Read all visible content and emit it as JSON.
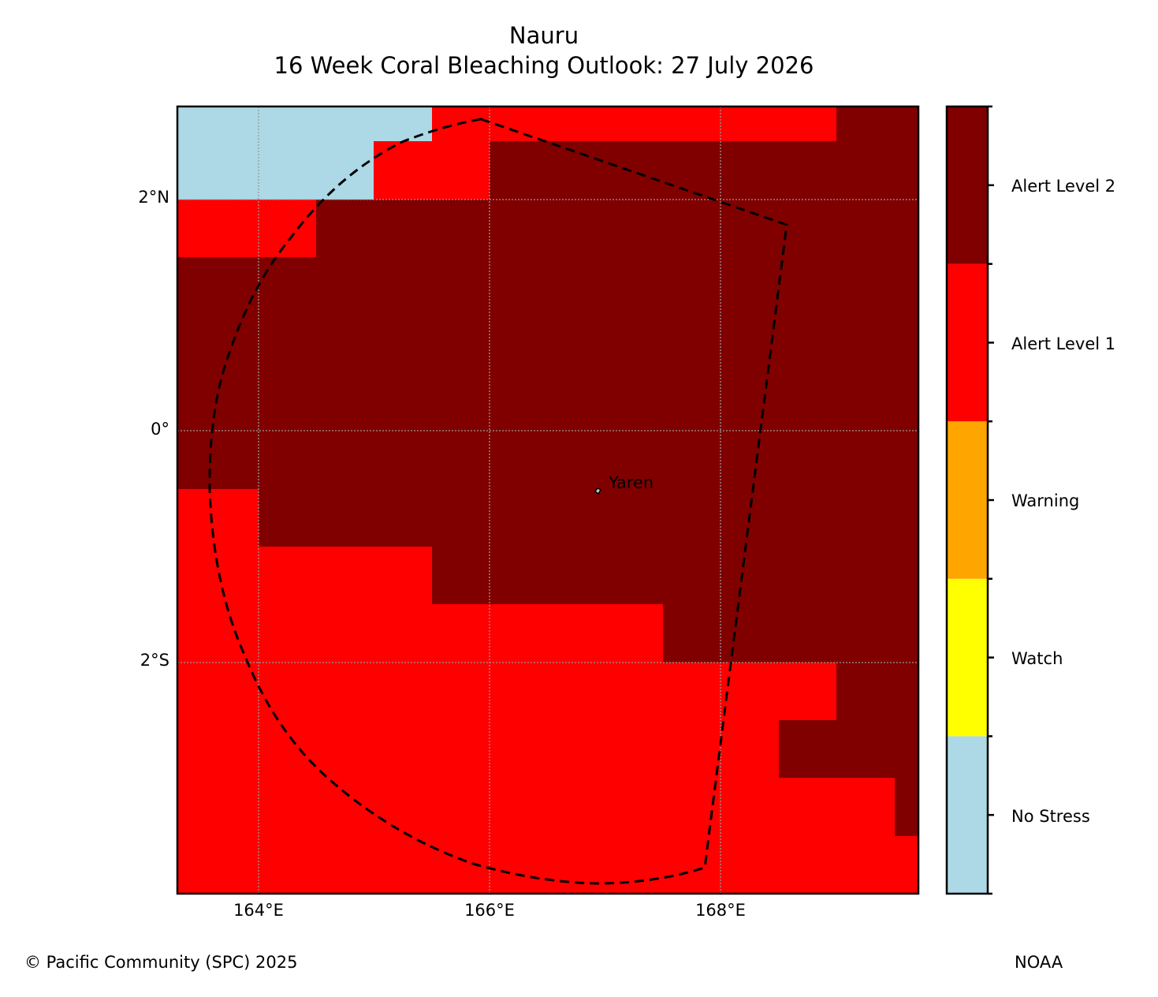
{
  "title": {
    "line1": "Nauru",
    "line2": "16 Week Coral Bleaching Outlook: 27 July 2026"
  },
  "map": {
    "lat_labels": [
      "2°N",
      "0°",
      "2°S"
    ],
    "lon_labels": [
      "164°E",
      "166°E",
      "168°E"
    ],
    "place_label": "Yaren",
    "extent": {
      "lon_min": 163.3,
      "lon_max": 169.7,
      "lat_min": -3.99,
      "lat_max": 2.8
    }
  },
  "legend": {
    "levels": [
      {
        "label": "No Stress",
        "color": "#add8e6"
      },
      {
        "label": "Watch",
        "color": "#ffff00"
      },
      {
        "label": "Warning",
        "color": "#ffa500"
      },
      {
        "label": "Alert Level 1",
        "color": "#ff0000"
      },
      {
        "label": "Alert Level 2",
        "color": "#800000"
      }
    ]
  },
  "footer": {
    "copyright": "© Pacific Community (SPC) 2025",
    "source": "NOAA"
  }
}
